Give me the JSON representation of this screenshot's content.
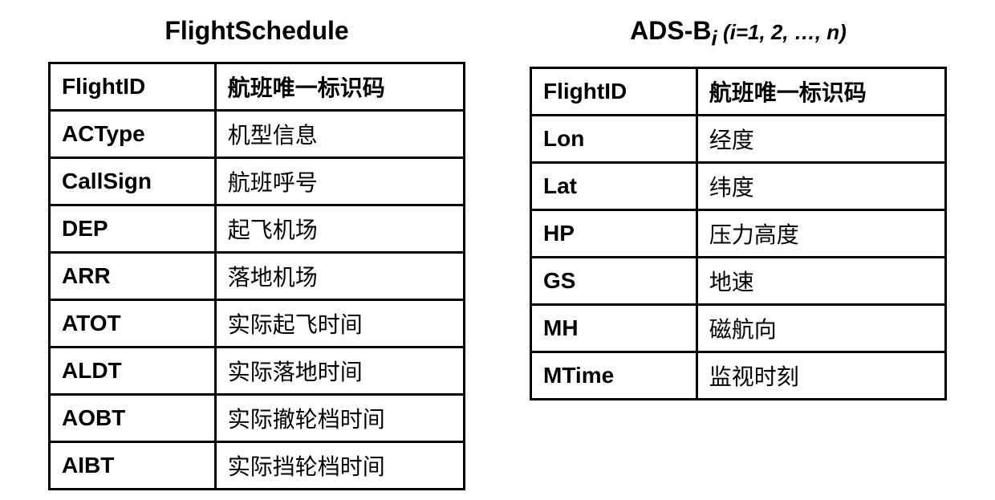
{
  "tables": [
    {
      "title_html": "FlightSchedule",
      "title_fontsize": 32,
      "title_weight": "bold",
      "border_color": "#000000",
      "border_width": 3,
      "cell_padding": 10,
      "font_size": 28,
      "key_col_width_pct": 40,
      "rows": [
        {
          "key": "FlightID",
          "val": "航班唯一标识码",
          "val_bold": true
        },
        {
          "key": "ACType",
          "val": "机型信息"
        },
        {
          "key": "CallSign",
          "val": "航班呼号"
        },
        {
          "key": "DEP",
          "val": "起飞机场"
        },
        {
          "key": "ARR",
          "val": "落地机场"
        },
        {
          "key": "ATOT",
          "val": "实际起飞时间"
        },
        {
          "key": "ALDT",
          "val": "实际落地时间"
        },
        {
          "key": "AOBT",
          "val": "实际撤轮档时间"
        },
        {
          "key": "AIBT",
          "val": "实际挡轮档时间"
        }
      ]
    },
    {
      "title_main": "ADS-B",
      "title_sub_i": "i",
      "title_paren": " (i=1, 2, …, n)",
      "title_fontsize": 32,
      "title_weight": "bold",
      "border_color": "#000000",
      "border_width": 3,
      "cell_padding": 10,
      "font_size": 28,
      "key_col_width_pct": 40,
      "rows": [
        {
          "key": "FlightID",
          "val": "航班唯一标识码",
          "val_bold": true
        },
        {
          "key": "Lon",
          "val": "经度"
        },
        {
          "key": "Lat",
          "val": "纬度"
        },
        {
          "key": "HP",
          "val": "压力高度"
        },
        {
          "key": "GS",
          "val": "地速"
        },
        {
          "key": "MH",
          "val": "磁航向"
        },
        {
          "key": "MTime",
          "val": "监视时刻"
        }
      ]
    }
  ]
}
